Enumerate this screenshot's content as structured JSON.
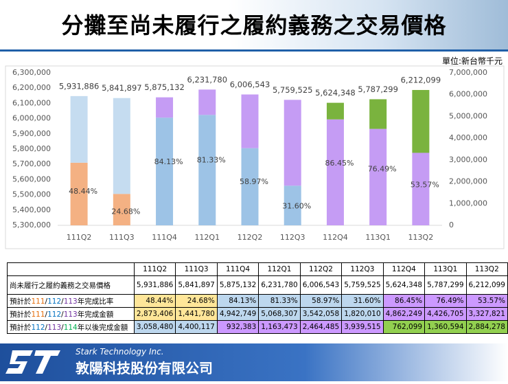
{
  "header": {
    "title": "分攤至尚未履行之履約義務之交易價格",
    "unit": "單位:新台幣千元"
  },
  "chart_data": {
    "type": "bar",
    "stacked": true,
    "categories": [
      "111Q2",
      "111Q3",
      "111Q4",
      "112Q1",
      "112Q2",
      "112Q3",
      "112Q4",
      "113Q1",
      "113Q2"
    ],
    "ylim": [
      5300000,
      6300000
    ],
    "yticks": [
      {
        "value": 5300000,
        "label": "5,300,000"
      },
      {
        "value": 5400000,
        "label": "5,400,000"
      },
      {
        "value": 5500000,
        "label": "5,500,000"
      },
      {
        "value": 5600000,
        "label": "5,600,000"
      },
      {
        "value": 5700000,
        "label": "5,700,000"
      },
      {
        "value": 5800000,
        "label": "5,800,000"
      },
      {
        "value": 5900000,
        "label": "5,900,000"
      },
      {
        "value": 6000000,
        "label": "6,000,000"
      },
      {
        "value": 6100000,
        "label": "6,100,000"
      },
      {
        "value": 6200000,
        "label": "6,200,000"
      },
      {
        "value": 6300000,
        "label": "6,300,000"
      }
    ],
    "y2lim": [
      0,
      7000000
    ],
    "y2ticks": [
      0,
      {
        "value": 1000000,
        "label": "1,000,000"
      },
      {
        "value": 2000000,
        "label": "2,000,000"
      },
      {
        "value": 3000000,
        "label": "3,000,000"
      },
      {
        "value": 4000000,
        "label": "4,000,000"
      },
      {
        "value": 5000000,
        "label": "5,000,000"
      },
      {
        "value": 6000000,
        "label": "6,000,000"
      },
      {
        "value": 7000000,
        "label": "7,000,000"
      }
    ],
    "series": [
      {
        "axis": "y2",
        "values": [
          2873406,
          1441780,
          4942749,
          5068307,
          3542058,
          1820010,
          4862249,
          4426705,
          3327821
        ],
        "colors": [
          "#f4b183",
          "#f4b183",
          "#9dc3e6",
          "#9dc3e6",
          "#9dc3e6",
          "#9dc3e6",
          "#c59cf4",
          "#c59cf4",
          "#c59cf4"
        ]
      },
      {
        "axis": "y2",
        "values": [
          3058480,
          4400117,
          932383,
          1163473,
          2464485,
          3939515,
          762099,
          1360594,
          2884278
        ],
        "colors": [
          "#c5dcf0",
          "#c5dcf0",
          "#c59cf4",
          "#c59cf4",
          "#c59cf4",
          "#c59cf4",
          "#7ab33e",
          "#7ab33e",
          "#7ab33e"
        ]
      }
    ],
    "totals": {
      "values": [
        5931886,
        5841897,
        5875132,
        6231780,
        6006543,
        5759525,
        5624348,
        5787299,
        6212099
      ],
      "value_labels": [
        "5,931,886",
        "5,841,897",
        "5,875,132",
        "6,231,780",
        "6,006,543",
        "5,759,525",
        "5,624,348",
        "5,787,299",
        "6,212,099"
      ]
    },
    "percent": {
      "values": [
        48.44,
        24.68,
        84.13,
        81.33,
        58.97,
        31.6,
        86.45,
        76.49,
        53.57
      ],
      "value_labels": [
        "48.44%",
        "24.68%",
        "84.13%",
        "81.33%",
        "58.97%",
        "31.60%",
        "86.45%",
        "76.49%",
        "53.57%"
      ]
    }
  },
  "table": {
    "header": [
      "111Q2",
      "111Q3",
      "111Q4",
      "112Q1",
      "112Q2",
      "112Q3",
      "112Q4",
      "113Q1",
      "113Q2"
    ],
    "rows": [
      {
        "label_parts": [
          {
            "text": "尚未履行之履約義務之交易價格",
            "color": "#000000"
          }
        ],
        "cells": [
          "5,931,886",
          "5,841,897",
          "5,875,132",
          "6,231,780",
          "6,006,543",
          "5,759,525",
          "5,624,348",
          "5,787,299",
          "6,212,099"
        ],
        "colors": [
          "#ffffff",
          "#ffffff",
          "#ffffff",
          "#ffffff",
          "#ffffff",
          "#ffffff",
          "#ffffff",
          "#ffffff",
          "#ffffff"
        ]
      },
      {
        "label_parts": [
          {
            "text": "預計於",
            "color": "#000000"
          },
          {
            "text": "111",
            "color": "#e46c0a"
          },
          {
            "text": "/",
            "color": "#000000"
          },
          {
            "text": "112",
            "color": "#0070c0"
          },
          {
            "text": "/",
            "color": "#000000"
          },
          {
            "text": "113",
            "color": "#7030a0"
          },
          {
            "text": "年完成比率",
            "color": "#000000"
          }
        ],
        "cells": [
          "48.44%",
          "24.68%",
          "84.13%",
          "81.33%",
          "58.97%",
          "31.60%",
          "86.45%",
          "76.49%",
          "53.57%"
        ],
        "colors": [
          "#ffe699",
          "#ffe699",
          "#bdd7ee",
          "#bdd7ee",
          "#bdd7ee",
          "#bdd7ee",
          "#cc99ff",
          "#cc99ff",
          "#cc99ff"
        ]
      },
      {
        "label_parts": [
          {
            "text": "預計於",
            "color": "#000000"
          },
          {
            "text": "111",
            "color": "#e46c0a"
          },
          {
            "text": "/",
            "color": "#000000"
          },
          {
            "text": "112",
            "color": "#0070c0"
          },
          {
            "text": "/",
            "color": "#000000"
          },
          {
            "text": "113",
            "color": "#7030a0"
          },
          {
            "text": "年完成金額",
            "color": "#000000"
          }
        ],
        "cells": [
          "2,873,406",
          "1,441,780",
          "4,942,749",
          "5,068,307",
          "3,542,058",
          "1,820,010",
          "4,862,249",
          "4,426,705",
          "3,327,821"
        ],
        "colors": [
          "#ffe699",
          "#ffe699",
          "#bdd7ee",
          "#bdd7ee",
          "#bdd7ee",
          "#bdd7ee",
          "#cc99ff",
          "#cc99ff",
          "#cc99ff"
        ]
      },
      {
        "label_parts": [
          {
            "text": "預計於",
            "color": "#000000"
          },
          {
            "text": "112",
            "color": "#0070c0"
          },
          {
            "text": "/",
            "color": "#000000"
          },
          {
            "text": "113",
            "color": "#7030a0"
          },
          {
            "text": "/",
            "color": "#000000"
          },
          {
            "text": "114",
            "color": "#00b050"
          },
          {
            "text": "年以後完成金額",
            "color": "#000000"
          }
        ],
        "cells": [
          "3,058,480",
          "4,400,117",
          "932,383",
          "1,163,473",
          "2,464,485",
          "3,939,515",
          "762,099",
          "1,360,594",
          "2,884,278"
        ],
        "colors": [
          "#bdd7ee",
          "#bdd7ee",
          "#cc99ff",
          "#cc99ff",
          "#cc99ff",
          "#cc99ff",
          "#92d050",
          "#92d050",
          "#92d050"
        ]
      }
    ]
  },
  "footer": {
    "company_en": "Stark Technology Inc.",
    "company_zh": "敦陽科技股份有限公司"
  }
}
